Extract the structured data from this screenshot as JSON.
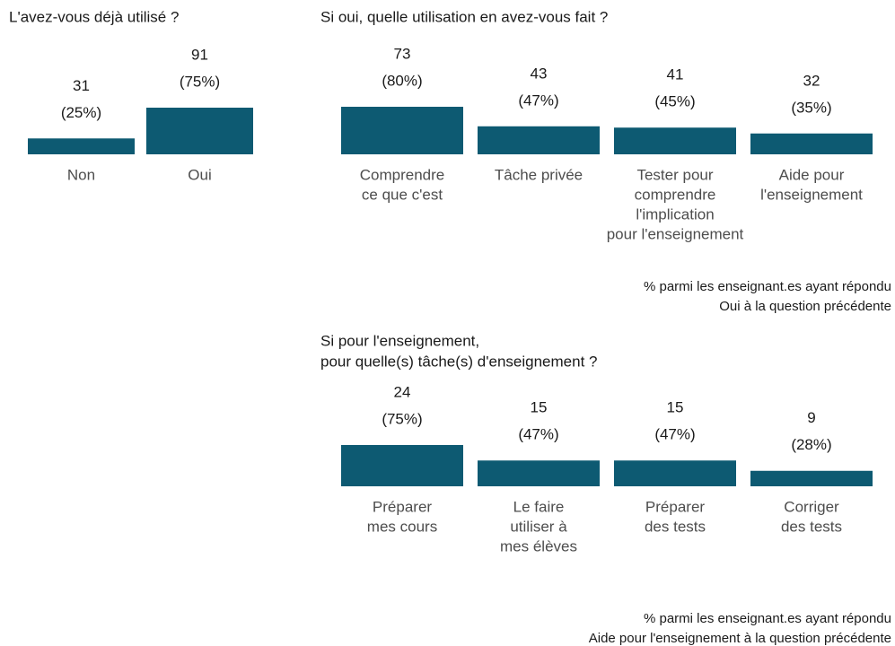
{
  "chart_data": [
    {
      "type": "bar",
      "title": [
        "L'avez-vous déjà utilisé ?"
      ],
      "categories": [
        [
          "Non"
        ],
        [
          "Oui"
        ]
      ],
      "values": [
        31,
        91
      ],
      "share_labels": [
        "(25%)",
        "(75%)"
      ],
      "color": "#0d5a72"
    },
    {
      "type": "bar",
      "title": [
        "Si oui, quelle utilisation en avez-vous fait ?"
      ],
      "categories": [
        [
          "Comprendre",
          "ce que c'est"
        ],
        [
          "Tâche privée"
        ],
        [
          "Tester pour",
          "comprendre",
          "l'implication",
          "pour l'enseignement"
        ],
        [
          "Aide pour",
          "l'enseignement"
        ]
      ],
      "values": [
        73,
        43,
        41,
        32
      ],
      "share_labels": [
        "(80%)",
        "(47%)",
        "(45%)",
        "(35%)"
      ],
      "color": "#0d5a72",
      "caption": [
        "% parmi les enseignant.es ayant répondu",
        "Oui à la question précédente"
      ]
    },
    {
      "type": "bar",
      "title": [
        "Si pour l'enseignement,",
        "pour quelle(s) tâche(s) d'enseignement ?"
      ],
      "categories": [
        [
          "Préparer",
          "mes cours"
        ],
        [
          "Le faire",
          "utiliser à",
          "mes élèves"
        ],
        [
          "Préparer",
          "des tests"
        ],
        [
          "Corriger",
          "des tests"
        ]
      ],
      "values": [
        24,
        15,
        15,
        9
      ],
      "share_labels": [
        "(75%)",
        "(47%)",
        "(47%)",
        "(28%)"
      ],
      "color": "#0d5a72",
      "caption": [
        "% parmi les enseignant.es ayant répondu",
        "Aide pour l'enseignement à la question précédente"
      ]
    }
  ]
}
